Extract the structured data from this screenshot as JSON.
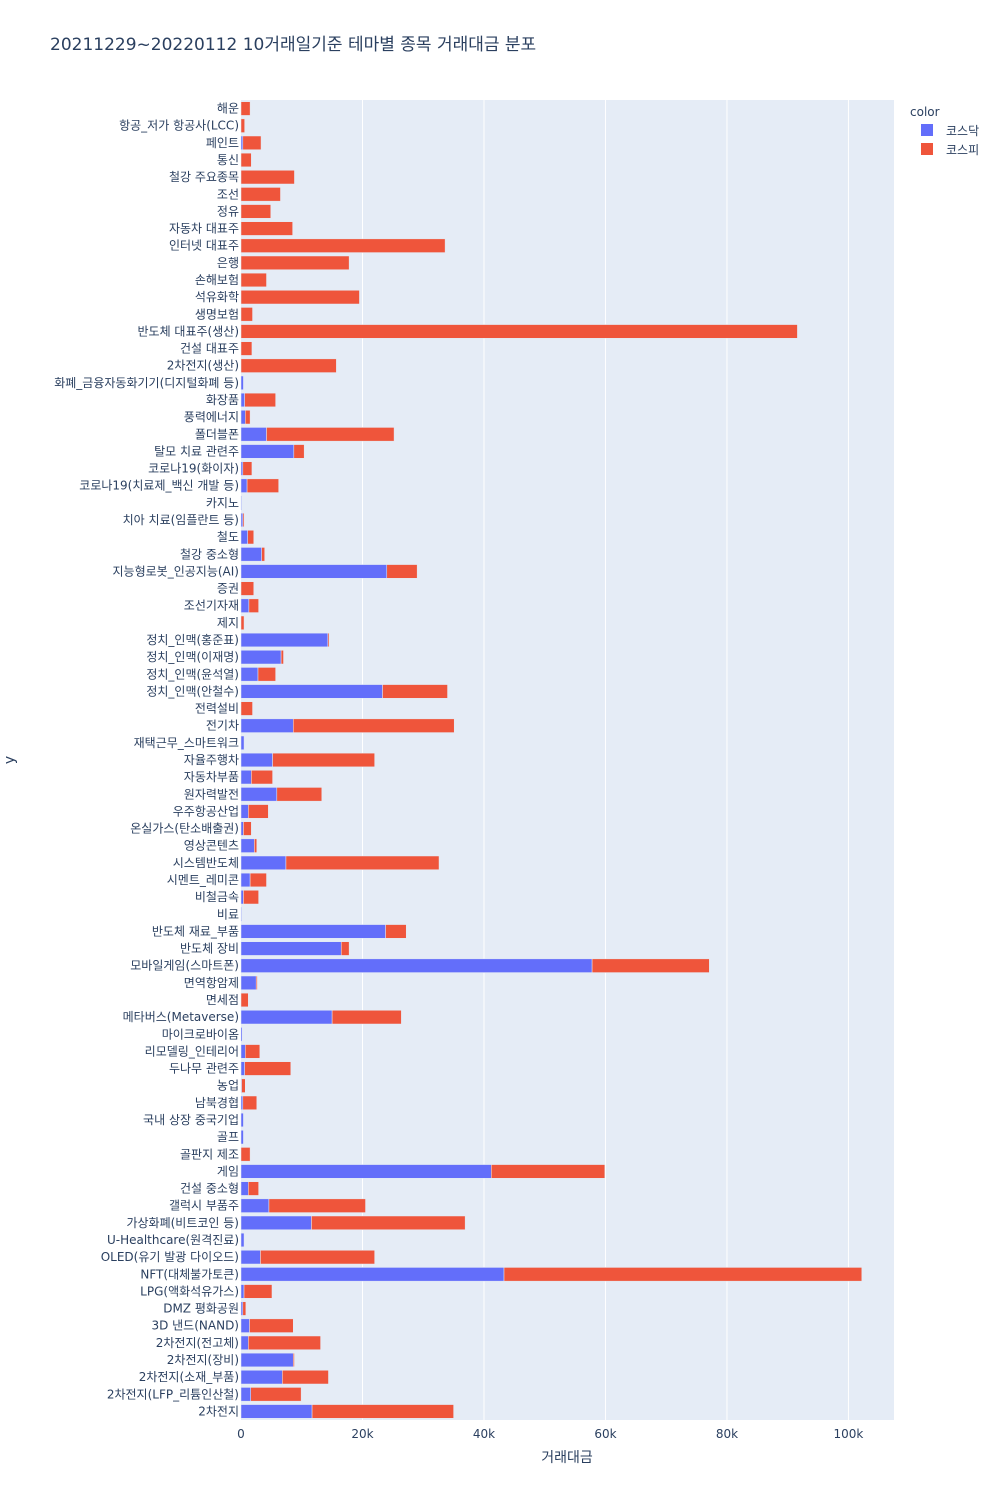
{
  "chart_data": {
    "type": "bar",
    "orientation": "horizontal",
    "barmode": "stack",
    "title": "20211229~20220112 10거래일기준 테마별 종목 거래대금 분포",
    "xlabel": "거래대금",
    "ylabel": "y",
    "xlim": [
      0,
      107500
    ],
    "x_ticks": [
      0,
      20000,
      40000,
      60000,
      80000,
      100000
    ],
    "x_tick_labels": [
      "0",
      "20k",
      "40k",
      "60k",
      "80k",
      "100k"
    ],
    "grid": true,
    "legend": {
      "title": "color",
      "placement": "top-right"
    },
    "series_colors": {
      "코스닥": "#636efa",
      "코스피": "#ef553b"
    },
    "plot_background": "#e5ecf6",
    "categories_top_to_bottom": [
      "해운",
      "항공_저가 항공사(LCC)",
      "페인트",
      "통신",
      "철강 주요종목",
      "조선",
      "정유",
      "자동차 대표주",
      "인터넷 대표주",
      "은행",
      "손해보험",
      "석유화학",
      "생명보험",
      "반도체 대표주(생산)",
      "건설 대표주",
      "2차전지(생산)",
      "화폐_금융자동화기기(디지털화폐 등)",
      "화장품",
      "풍력에너지",
      "폴더블폰",
      "탈모 치료 관련주",
      "코로나19(화이자)",
      "코로나19(치료제_백신 개발 등)",
      "카지노",
      "치아 치료(임플란트 등)",
      "철도",
      "철강 중소형",
      "지능형로봇_인공지능(AI)",
      "증권",
      "조선기자재",
      "제지",
      "정치_인맥(홍준표)",
      "정치_인맥(이재명)",
      "정치_인맥(윤석열)",
      "정치_인맥(안철수)",
      "전력설비",
      "전기차",
      "재택근무_스마트워크",
      "자율주행차",
      "자동차부품",
      "원자력발전",
      "우주항공산업",
      "온실가스(탄소배출권)",
      "영상콘텐츠",
      "시스템반도체",
      "시멘트_레미콘",
      "비철금속",
      "비료",
      "반도체 재료_부품",
      "반도체 장비",
      "모바일게임(스마트폰)",
      "면역항암제",
      "면세점",
      "메타버스(Metaverse)",
      "마이크로바이옴",
      "리모델링_인테리어",
      "두나무 관련주",
      "농업",
      "남북경협",
      "국내 상장 중국기업",
      "골프",
      "골판지 제조",
      "게임",
      "건설 중소형",
      "갤럭시 부품주",
      "가상화폐(비트코인 등)",
      "U-Healthcare(원격진료)",
      "OLED(유기 발광 다이오드)",
      "NFT(대체불가토큰)",
      "LPG(액화석유가스)",
      "DMZ 평화공원",
      "3D 낸드(NAND)",
      "2차전지(전고체)",
      "2차전지(장비)",
      "2차전지(소재_부품)",
      "2차전지(LFP_리튬인산철)",
      "2차전지"
    ],
    "series": [
      {
        "name": "코스닥",
        "values": [
          0,
          0,
          300,
          0,
          0,
          0,
          0,
          0,
          0,
          0,
          0,
          0,
          0,
          0,
          0,
          0,
          400,
          600,
          700,
          4200,
          8700,
          300,
          1000,
          100,
          300,
          1100,
          3400,
          24000,
          0,
          1300,
          0,
          14300,
          6600,
          2800,
          23300,
          0,
          8600,
          500,
          5200,
          1700,
          5900,
          1200,
          400,
          2200,
          7400,
          1500,
          400,
          100,
          23800,
          16500,
          57800,
          2500,
          0,
          15000,
          200,
          700,
          600,
          100,
          300,
          400,
          400,
          0,
          41200,
          1200,
          4600,
          11600,
          500,
          3200,
          43300,
          500,
          300,
          1400,
          1200,
          8600,
          6800,
          1600,
          11700
        ]
      },
      {
        "name": "코스피",
        "values": [
          1500,
          600,
          3000,
          1700,
          8800,
          6500,
          4900,
          8500,
          33600,
          17800,
          4200,
          19500,
          1900,
          91600,
          1800,
          15700,
          0,
          5100,
          800,
          21000,
          1700,
          1500,
          5200,
          0,
          200,
          1000,
          500,
          5000,
          2100,
          1600,
          500,
          200,
          400,
          2900,
          10700,
          1900,
          26500,
          0,
          16800,
          3500,
          7400,
          3300,
          1300,
          400,
          25200,
          2700,
          2500,
          0,
          3400,
          1300,
          19300,
          200,
          1200,
          11400,
          0,
          2400,
          7600,
          600,
          2300,
          0,
          0,
          1500,
          18700,
          1700,
          15900,
          25300,
          0,
          18800,
          58900,
          4600,
          500,
          7200,
          11900,
          200,
          7600,
          8300,
          23300
        ]
      }
    ]
  }
}
